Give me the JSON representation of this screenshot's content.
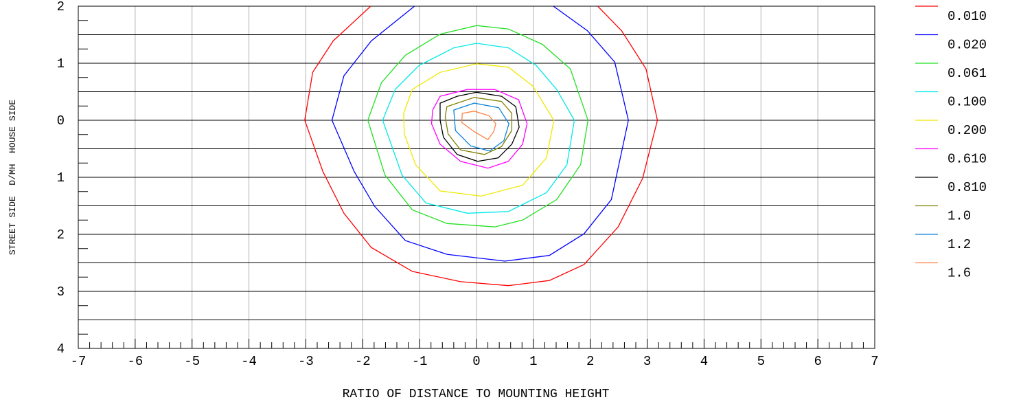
{
  "chart_data": {
    "type": "contour",
    "xlabel": "RATIO OF DISTANCE TO MOUNTING HEIGHT",
    "ylabel": "STREET SIDE  D/MH  HOUSE SIDE",
    "xlim": [
      -7,
      7
    ],
    "ylim": [
      -4,
      2
    ],
    "xticks": [
      -7,
      -6,
      -5,
      -4,
      -3,
      -2,
      -1,
      0,
      1,
      2,
      3,
      4,
      5,
      6,
      7
    ],
    "yticks": [
      2,
      1,
      0,
      {
        "value": -1,
        "label": "1"
      },
      {
        "value": -2,
        "label": "2"
      },
      {
        "value": -3,
        "label": "3"
      },
      {
        "value": -4,
        "label": "4"
      }
    ],
    "grid": true,
    "legend": "right",
    "series": [
      {
        "name": "0.010",
        "color": "#ff0000",
        "closed": false,
        "x": [
          -1.86,
          -2.52,
          -2.88,
          -3.02,
          -2.7,
          -2.33,
          -1.85,
          -1.13,
          -0.28,
          0.56,
          1.28,
          1.89,
          2.49,
          2.92,
          3.18,
          2.98,
          2.55,
          2.13
        ],
        "y": [
          2.0,
          1.39,
          0.84,
          0,
          -0.9,
          -1.63,
          -2.23,
          -2.65,
          -2.83,
          -2.9,
          -2.81,
          -2.53,
          -1.87,
          -1.02,
          0,
          0.9,
          1.57,
          2.0
        ]
      },
      {
        "name": "0.020",
        "color": "#0000ff",
        "closed": false,
        "x": [
          -1.09,
          -1.85,
          -2.33,
          -2.54,
          -2.15,
          -1.79,
          -1.25,
          -0.52,
          0.5,
          1.28,
          1.89,
          2.37,
          2.67,
          2.43,
          1.95,
          1.35
        ],
        "y": [
          2.0,
          1.39,
          0.78,
          0,
          -0.9,
          -1.51,
          -2.11,
          -2.35,
          -2.47,
          -2.37,
          -1.99,
          -1.39,
          0,
          1.02,
          1.57,
          2.0
        ]
      },
      {
        "name": "0.061",
        "color": "#22e022",
        "closed": true,
        "x": [
          -1.91,
          -1.67,
          -1.25,
          -0.64,
          0,
          0.56,
          1.16,
          1.65,
          1.96,
          1.83,
          1.41,
          0.81,
          0.32,
          -0.52,
          -1.13,
          -1.61
        ],
        "y": [
          0,
          0.66,
          1.14,
          1.51,
          1.66,
          1.6,
          1.33,
          0.9,
          0,
          -0.78,
          -1.39,
          -1.75,
          -1.87,
          -1.81,
          -1.57,
          -0.96
        ]
      },
      {
        "name": "0.100",
        "color": "#00e8e8",
        "closed": true,
        "x": [
          -1.65,
          -1.43,
          -1.01,
          -0.4,
          0,
          0.56,
          1.05,
          1.41,
          1.72,
          1.59,
          1.23,
          0.56,
          -0.16,
          -0.89,
          -1.31
        ],
        "y": [
          0,
          0.54,
          0.96,
          1.27,
          1.35,
          1.27,
          0.96,
          0.54,
          0,
          -0.78,
          -1.27,
          -1.6,
          -1.63,
          -1.45,
          -0.96
        ]
      },
      {
        "name": "0.200",
        "color": "#f0e800",
        "closed": true,
        "x": [
          -1.28,
          -1.13,
          -0.64,
          0,
          0.56,
          0.99,
          1.36,
          1.23,
          0.81,
          0.08,
          -0.64,
          -1.07,
          -1.27
        ],
        "y": [
          0.12,
          0.54,
          0.84,
          0.99,
          0.93,
          0.6,
          0,
          -0.66,
          -1.14,
          -1.33,
          -1.24,
          -0.78,
          -0.24
        ]
      },
      {
        "name": "0.610",
        "color": "#ff00ff",
        "closed": true,
        "x": [
          -0.77,
          -0.64,
          -0.16,
          0.32,
          0.74,
          0.89,
          0.81,
          0.56,
          0.2,
          -0.28,
          -0.64,
          -0.79
        ],
        "y": [
          0.18,
          0.42,
          0.54,
          0.54,
          0.36,
          -0.06,
          -0.42,
          -0.72,
          -0.84,
          -0.72,
          -0.42,
          -0.06
        ]
      },
      {
        "name": "0.810",
        "color": "#000000",
        "closed": true,
        "x": [
          -0.64,
          -0.34,
          0,
          0.44,
          0.69,
          0.75,
          0.62,
          0.38,
          0.02,
          -0.34,
          -0.58,
          -0.64
        ],
        "y": [
          0.3,
          0.42,
          0.49,
          0.42,
          0.24,
          -0.12,
          -0.42,
          -0.66,
          -0.72,
          -0.6,
          -0.3,
          0
        ]
      },
      {
        "name": "1.0",
        "color": "#808000",
        "closed": true,
        "x": [
          -0.52,
          -0.04,
          0.44,
          0.62,
          0.62,
          0.44,
          0.14,
          -0.28,
          -0.5,
          -0.55
        ],
        "y": [
          0.24,
          0.4,
          0.33,
          0.12,
          -0.18,
          -0.46,
          -0.6,
          -0.52,
          -0.24,
          0.06
        ]
      },
      {
        "name": "1.2",
        "color": "#0a84d8",
        "closed": true,
        "x": [
          -0.4,
          -0.04,
          0.39,
          0.57,
          0.48,
          0.23,
          -0.1,
          -0.37
        ],
        "y": [
          0.18,
          0.3,
          0.22,
          -0.06,
          -0.36,
          -0.54,
          -0.45,
          -0.18
        ]
      },
      {
        "name": "1.6",
        "color": "#ff8040",
        "closed": true,
        "x": [
          -0.25,
          -0.04,
          0.22,
          0.34,
          0.3,
          0.2,
          -0.04,
          -0.26
        ],
        "y": [
          0.12,
          0.16,
          0.08,
          -0.06,
          -0.2,
          -0.34,
          -0.2,
          -0.04
        ]
      }
    ]
  }
}
